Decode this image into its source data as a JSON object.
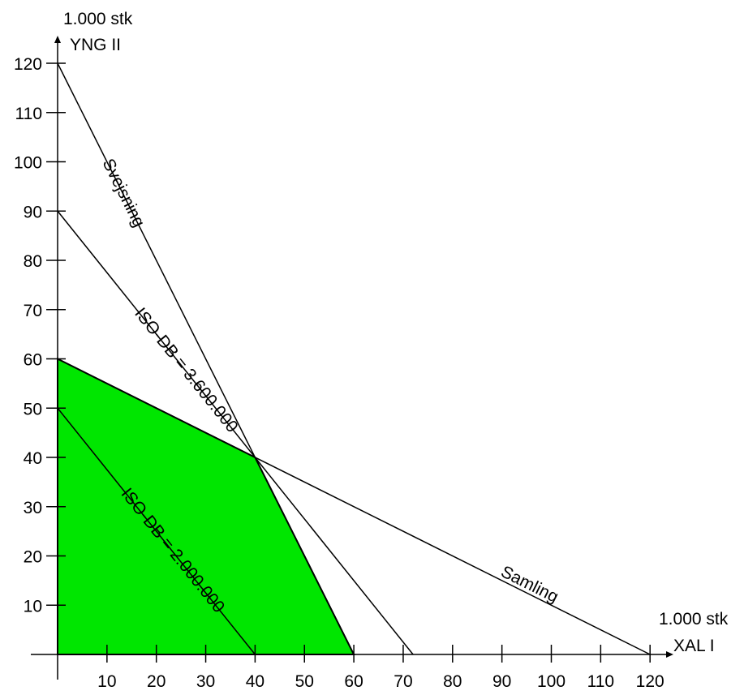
{
  "chart_data": {
    "type": "line",
    "title": "",
    "x_axis": {
      "unit": "1.000 stk",
      "label": "XAL I",
      "range": [
        0,
        120
      ],
      "ticks": [
        10,
        20,
        30,
        40,
        50,
        60,
        70,
        80,
        90,
        100,
        110,
        120
      ]
    },
    "y_axis": {
      "unit": "1.000 stk",
      "label": "YNG II",
      "range": [
        0,
        120
      ],
      "ticks": [
        10,
        20,
        30,
        40,
        50,
        60,
        70,
        80,
        90,
        100,
        110,
        120
      ]
    },
    "feasible_region": {
      "color": "#00e600",
      "vertices": [
        [
          0,
          0
        ],
        [
          0,
          60
        ],
        [
          40,
          40
        ],
        [
          60,
          0
        ]
      ]
    },
    "lines": [
      {
        "id": "svejsning",
        "label": "Svejsning",
        "points": [
          [
            0,
            120
          ],
          [
            60,
            0
          ]
        ]
      },
      {
        "id": "samling",
        "label": "Samling",
        "points": [
          [
            0,
            60
          ],
          [
            120,
            0
          ]
        ]
      },
      {
        "id": "iso-db-3600000",
        "label": "ISO-DB = 3.600.000",
        "points": [
          [
            0,
            90
          ],
          [
            72,
            0
          ]
        ]
      },
      {
        "id": "iso-db-2000000",
        "label": "ISO-DB = 2.000.000",
        "points": [
          [
            0,
            50
          ],
          [
            40,
            0
          ]
        ]
      }
    ]
  }
}
